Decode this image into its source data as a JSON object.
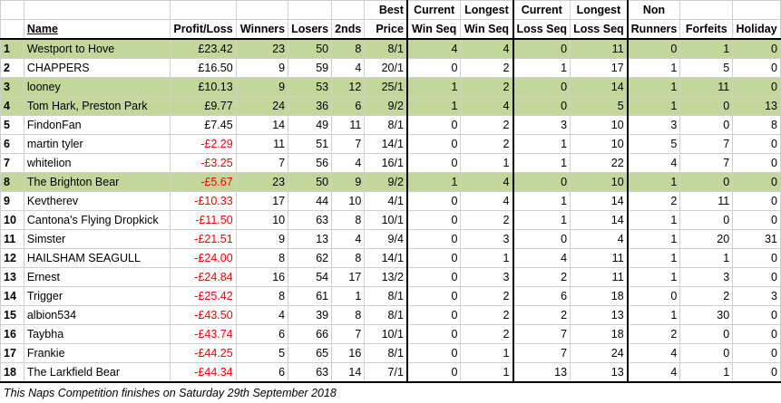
{
  "headers": {
    "num": "",
    "name": "Name",
    "profit": "Profit/Loss",
    "winners": "Winners",
    "losers": "Losers",
    "seconds": "2nds",
    "best_top": "Best",
    "best_bottom": "Price",
    "cur_win_top": "Current",
    "cur_win_bottom": "Win Seq",
    "long_win_top": "Longest",
    "long_win_bottom": "Win Seq",
    "cur_loss_top": "Current",
    "cur_loss_bottom": "Loss Seq",
    "long_loss_top": "Longest",
    "long_loss_bottom": "Loss Seq",
    "non_top": "Non",
    "non_bottom": "Runners",
    "forfeits": "Forfeits",
    "holiday": "Holiday"
  },
  "rows": [
    {
      "n": "1",
      "name": "Westport to Hove",
      "pl": "£23.42",
      "w": "23",
      "l": "50",
      "s": "8",
      "bp": "8/1",
      "cws": "4",
      "lws": "4",
      "cls": "0",
      "lls": "11",
      "nr": "0",
      "f": "1",
      "h": "0",
      "hl": true,
      "neg": false
    },
    {
      "n": "2",
      "name": "CHAPPERS",
      "pl": "£16.50",
      "w": "9",
      "l": "59",
      "s": "4",
      "bp": "20/1",
      "cws": "0",
      "lws": "2",
      "cls": "1",
      "lls": "17",
      "nr": "1",
      "f": "5",
      "h": "0",
      "hl": false,
      "neg": false
    },
    {
      "n": "3",
      "name": "looney",
      "pl": "£10.13",
      "w": "9",
      "l": "53",
      "s": "12",
      "bp": "25/1",
      "cws": "1",
      "lws": "2",
      "cls": "0",
      "lls": "14",
      "nr": "1",
      "f": "11",
      "h": "0",
      "hl": true,
      "neg": false
    },
    {
      "n": "4",
      "name": "Tom Hark, Preston Park",
      "pl": "£9.77",
      "w": "24",
      "l": "36",
      "s": "6",
      "bp": "9/2",
      "cws": "1",
      "lws": "4",
      "cls": "0",
      "lls": "5",
      "nr": "1",
      "f": "0",
      "h": "13",
      "hl": true,
      "neg": false
    },
    {
      "n": "5",
      "name": "FindonFan",
      "pl": "£7.45",
      "w": "14",
      "l": "49",
      "s": "11",
      "bp": "8/1",
      "cws": "0",
      "lws": "2",
      "cls": "3",
      "lls": "10",
      "nr": "3",
      "f": "0",
      "h": "8",
      "hl": false,
      "neg": false
    },
    {
      "n": "6",
      "name": "martin tyler",
      "pl": "-£2.29",
      "w": "11",
      "l": "51",
      "s": "7",
      "bp": "14/1",
      "cws": "0",
      "lws": "2",
      "cls": "1",
      "lls": "10",
      "nr": "5",
      "f": "7",
      "h": "0",
      "hl": false,
      "neg": true
    },
    {
      "n": "7",
      "name": "whitelion",
      "pl": "-£3.25",
      "w": "7",
      "l": "56",
      "s": "4",
      "bp": "16/1",
      "cws": "0",
      "lws": "1",
      "cls": "1",
      "lls": "22",
      "nr": "4",
      "f": "7",
      "h": "0",
      "hl": false,
      "neg": true
    },
    {
      "n": "8",
      "name": "The Brighton Bear",
      "pl": "-£5.67",
      "w": "23",
      "l": "50",
      "s": "9",
      "bp": "9/2",
      "cws": "1",
      "lws": "4",
      "cls": "0",
      "lls": "10",
      "nr": "1",
      "f": "0",
      "h": "0",
      "hl": true,
      "neg": true
    },
    {
      "n": "9",
      "name": "Kevtherev",
      "pl": "-£10.33",
      "w": "17",
      "l": "44",
      "s": "10",
      "bp": "4/1",
      "cws": "0",
      "lws": "4",
      "cls": "1",
      "lls": "14",
      "nr": "2",
      "f": "11",
      "h": "0",
      "hl": false,
      "neg": true
    },
    {
      "n": "10",
      "name": "Cantona's Flying Dropkick",
      "pl": "-£11.50",
      "w": "10",
      "l": "63",
      "s": "8",
      "bp": "10/1",
      "cws": "0",
      "lws": "2",
      "cls": "1",
      "lls": "14",
      "nr": "1",
      "f": "0",
      "h": "0",
      "hl": false,
      "neg": true
    },
    {
      "n": "11",
      "name": "Simster",
      "pl": "-£21.51",
      "w": "9",
      "l": "13",
      "s": "4",
      "bp": "9/4",
      "cws": "0",
      "lws": "3",
      "cls": "0",
      "lls": "4",
      "nr": "1",
      "f": "20",
      "h": "31",
      "hl": false,
      "neg": true
    },
    {
      "n": "12",
      "name": "HAILSHAM SEAGULL",
      "pl": "-£24.00",
      "w": "8",
      "l": "62",
      "s": "8",
      "bp": "14/1",
      "cws": "0",
      "lws": "1",
      "cls": "4",
      "lls": "11",
      "nr": "1",
      "f": "1",
      "h": "0",
      "hl": false,
      "neg": true
    },
    {
      "n": "13",
      "name": "Ernest",
      "pl": "-£24.84",
      "w": "16",
      "l": "54",
      "s": "17",
      "bp": "13/2",
      "cws": "0",
      "lws": "3",
      "cls": "2",
      "lls": "11",
      "nr": "1",
      "f": "3",
      "h": "0",
      "hl": false,
      "neg": true
    },
    {
      "n": "14",
      "name": "Trigger",
      "pl": "-£25.42",
      "w": "8",
      "l": "61",
      "s": "1",
      "bp": "8/1",
      "cws": "0",
      "lws": "2",
      "cls": "6",
      "lls": "18",
      "nr": "0",
      "f": "2",
      "h": "3",
      "hl": false,
      "neg": true
    },
    {
      "n": "15",
      "name": "albion534",
      "pl": "-£43.50",
      "w": "4",
      "l": "39",
      "s": "8",
      "bp": "8/1",
      "cws": "0",
      "lws": "2",
      "cls": "2",
      "lls": "13",
      "nr": "1",
      "f": "30",
      "h": "0",
      "hl": false,
      "neg": true
    },
    {
      "n": "16",
      "name": "Taybha",
      "pl": "-£43.74",
      "w": "6",
      "l": "66",
      "s": "7",
      "bp": "10/1",
      "cws": "0",
      "lws": "2",
      "cls": "7",
      "lls": "18",
      "nr": "2",
      "f": "0",
      "h": "0",
      "hl": false,
      "neg": true
    },
    {
      "n": "17",
      "name": "Frankie",
      "pl": "-£44.25",
      "w": "5",
      "l": "65",
      "s": "16",
      "bp": "8/1",
      "cws": "0",
      "lws": "1",
      "cls": "7",
      "lls": "24",
      "nr": "4",
      "f": "0",
      "h": "0",
      "hl": false,
      "neg": true
    },
    {
      "n": "18",
      "name": "The Larkfield Bear",
      "pl": "-£44.34",
      "w": "6",
      "l": "63",
      "s": "14",
      "bp": "7/1",
      "cws": "0",
      "lws": "1",
      "cls": "13",
      "lls": "13",
      "nr": "4",
      "f": "1",
      "h": "0",
      "hl": false,
      "neg": true
    }
  ],
  "footer_note": "This Naps Competition finishes on Saturday 29th September 2018",
  "colors": {
    "highlight": "#c4d79b",
    "negative": "#ff0000"
  }
}
